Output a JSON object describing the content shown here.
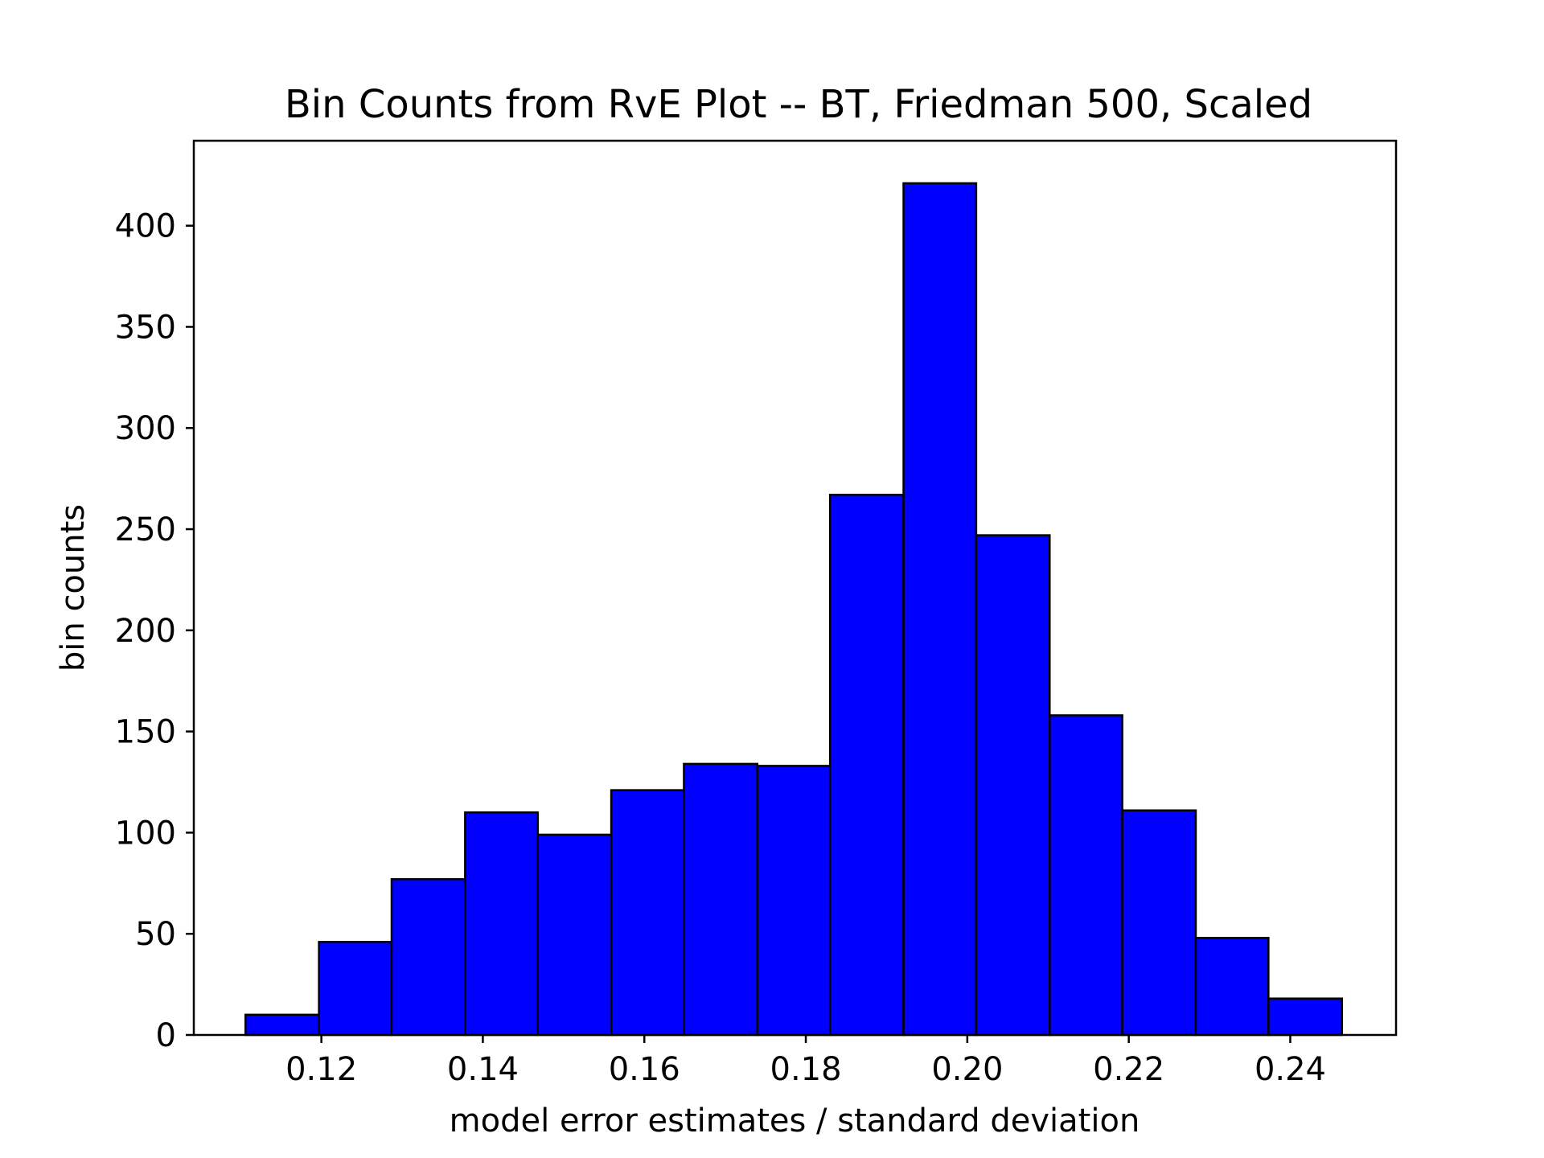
{
  "chart_data": {
    "type": "bar",
    "title": "Bin Counts from RvE Plot -- BT, Friedman 500, Scaled",
    "xlabel": "model error estimates / standard deviation",
    "ylabel": "bin counts",
    "bar_color": "#0000ff",
    "edge_color": "#000000",
    "xlim": [
      0.1042,
      0.2531
    ],
    "ylim": [
      0,
      442
    ],
    "x_ticks": [
      0.12,
      0.14,
      0.16,
      0.18,
      0.2,
      0.22,
      0.24
    ],
    "x_tick_labels": [
      "0.12",
      "0.14",
      "0.16",
      "0.18",
      "0.20",
      "0.22",
      "0.24"
    ],
    "y_ticks": [
      0,
      50,
      100,
      150,
      200,
      250,
      300,
      350,
      400
    ],
    "y_tick_labels": [
      "0",
      "50",
      "100",
      "150",
      "200",
      "250",
      "300",
      "350",
      "400"
    ],
    "bin_edges": [
      0.1106,
      0.1197,
      0.1287,
      0.1378,
      0.1468,
      0.1559,
      0.1649,
      0.174,
      0.183,
      0.1921,
      0.2011,
      0.2102,
      0.2192,
      0.2283,
      0.2373,
      0.2464
    ],
    "values": [
      10,
      46,
      77,
      110,
      99,
      121,
      134,
      133,
      267,
      421,
      247,
      158,
      111,
      48,
      18
    ],
    "grid": false,
    "legend": "none"
  }
}
